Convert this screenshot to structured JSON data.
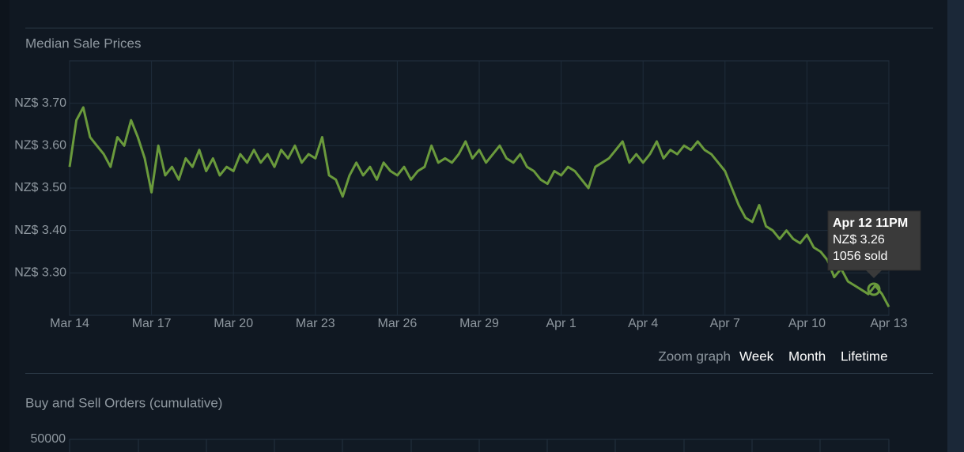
{
  "chart_data": {
    "type": "line",
    "title": "Median Sale Prices",
    "color": "#6a9a3c",
    "x": [
      0,
      0.25,
      0.5,
      0.75,
      1,
      1.25,
      1.5,
      1.75,
      2,
      2.25,
      2.5,
      2.75,
      3,
      3.25,
      3.5,
      3.75,
      4,
      4.25,
      4.5,
      4.75,
      5,
      5.25,
      5.5,
      5.75,
      6,
      6.25,
      6.5,
      6.75,
      7,
      7.25,
      7.5,
      7.75,
      8,
      8.25,
      8.5,
      8.75,
      9,
      9.25,
      9.5,
      9.75,
      10,
      10.25,
      10.5,
      10.75,
      11,
      11.25,
      11.5,
      11.75,
      12,
      12.25,
      12.5,
      12.75,
      13,
      13.25,
      13.5,
      13.75,
      14,
      14.25,
      14.5,
      14.75,
      15,
      15.25,
      15.5,
      15.75,
      16,
      16.25,
      16.5,
      16.75,
      17,
      17.25,
      17.5,
      17.75,
      18,
      18.25,
      18.5,
      18.75,
      19,
      19.25,
      19.5,
      19.75,
      20,
      20.25,
      20.5,
      20.75,
      21,
      21.25,
      21.5,
      21.75,
      22,
      22.25,
      22.5,
      22.75,
      23,
      23.25,
      23.5,
      23.75,
      24,
      24.25,
      24.5,
      24.75,
      25,
      25.25,
      25.5,
      25.75,
      26,
      26.25,
      26.5,
      26.75,
      27,
      27.25,
      27.5,
      27.75,
      28,
      28.25,
      28.5,
      28.75,
      29,
      29.25,
      29.5,
      29.75,
      30
    ],
    "values": [
      3.55,
      3.66,
      3.69,
      3.62,
      3.6,
      3.58,
      3.55,
      3.62,
      3.6,
      3.66,
      3.62,
      3.57,
      3.49,
      3.6,
      3.53,
      3.55,
      3.52,
      3.57,
      3.55,
      3.59,
      3.54,
      3.57,
      3.53,
      3.55,
      3.54,
      3.58,
      3.56,
      3.59,
      3.56,
      3.58,
      3.55,
      3.59,
      3.57,
      3.6,
      3.56,
      3.58,
      3.57,
      3.62,
      3.53,
      3.52,
      3.48,
      3.53,
      3.56,
      3.53,
      3.55,
      3.52,
      3.56,
      3.54,
      3.53,
      3.55,
      3.52,
      3.54,
      3.55,
      3.6,
      3.56,
      3.57,
      3.56,
      3.58,
      3.61,
      3.57,
      3.59,
      3.56,
      3.58,
      3.6,
      3.57,
      3.56,
      3.58,
      3.55,
      3.54,
      3.52,
      3.51,
      3.54,
      3.53,
      3.55,
      3.54,
      3.52,
      3.5,
      3.55,
      3.56,
      3.57,
      3.59,
      3.61,
      3.56,
      3.58,
      3.56,
      3.58,
      3.61,
      3.57,
      3.59,
      3.58,
      3.6,
      3.59,
      3.61,
      3.59,
      3.58,
      3.56,
      3.54,
      3.5,
      3.46,
      3.43,
      3.42,
      3.46,
      3.41,
      3.4,
      3.38,
      3.4,
      3.38,
      3.37,
      3.39,
      3.36,
      3.35,
      3.33,
      3.29,
      3.31,
      3.28,
      3.27,
      3.26,
      3.25,
      3.27,
      3.25,
      3.22
    ],
    "xlim": [
      0,
      30
    ],
    "xticks": [
      {
        "value": 0,
        "label": "Mar 14"
      },
      {
        "value": 3,
        "label": "Mar 17"
      },
      {
        "value": 6,
        "label": "Mar 20"
      },
      {
        "value": 9,
        "label": "Mar 23"
      },
      {
        "value": 12,
        "label": "Mar 26"
      },
      {
        "value": 15,
        "label": "Mar 29"
      },
      {
        "value": 18,
        "label": "Apr 1"
      },
      {
        "value": 21,
        "label": "Apr 4"
      },
      {
        "value": 24,
        "label": "Apr 7"
      },
      {
        "value": 27,
        "label": "Apr 10"
      },
      {
        "value": 30,
        "label": "Apr 13"
      }
    ],
    "ylim": [
      3.2,
      3.8
    ],
    "yticks": [
      {
        "value": 3.3,
        "label": "NZ$ 3.30"
      },
      {
        "value": 3.4,
        "label": "NZ$ 3.40"
      },
      {
        "value": 3.5,
        "label": "NZ$ 3.50"
      },
      {
        "value": 3.6,
        "label": "NZ$ 3.60"
      },
      {
        "value": 3.7,
        "label": "NZ$ 3.70"
      }
    ],
    "grid": true,
    "tooltip": {
      "date": "Apr 12 11PM",
      "price": "NZ$ 3.26",
      "sold": "1056 sold"
    }
  },
  "zoom": {
    "label": "Zoom graph",
    "options": [
      "Week",
      "Month",
      "Lifetime"
    ]
  },
  "orders_section": {
    "title": "Buy and Sell Orders (cumulative)",
    "y_tick_label": "50000"
  }
}
